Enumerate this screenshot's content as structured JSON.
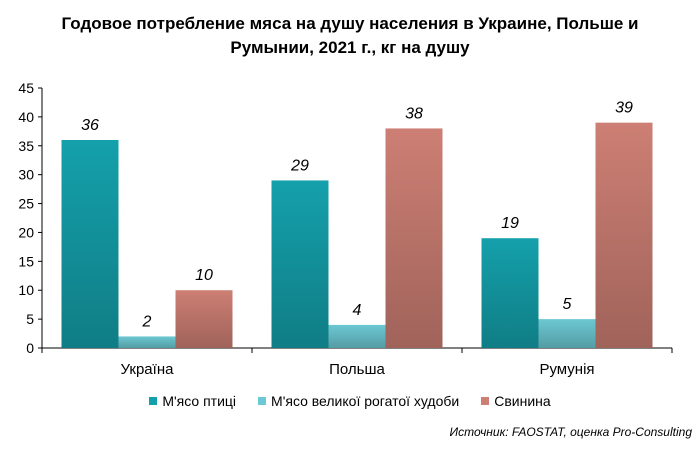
{
  "chart_data": {
    "type": "bar",
    "title_lines": [
      "Годовое потребление мяса на душу населения в Украине, Польше и",
      "Румынии, 2021 г., кг на душу"
    ],
    "categories": [
      "Україна",
      "Польша",
      "Румунія"
    ],
    "series": [
      {
        "name": "М'ясо птиці",
        "values": [
          36,
          29,
          19
        ],
        "color": "#14a0ab"
      },
      {
        "name": "М'ясо великої рогатої худоби",
        "values": [
          2,
          4,
          5
        ],
        "color": "#6cc8d2"
      },
      {
        "name": "Свинина",
        "values": [
          10,
          38,
          39
        ],
        "color": "#cd7f74"
      }
    ],
    "ylim": [
      0,
      45
    ],
    "yticks": [
      "0",
      "5",
      "10",
      "15",
      "20",
      "25",
      "30",
      "35",
      "40",
      "45"
    ],
    "legend_position": "bottom",
    "grid": false,
    "data_labels": true
  },
  "source_text": "Источник: FAOSTAT, оценка Pro-Consulting"
}
